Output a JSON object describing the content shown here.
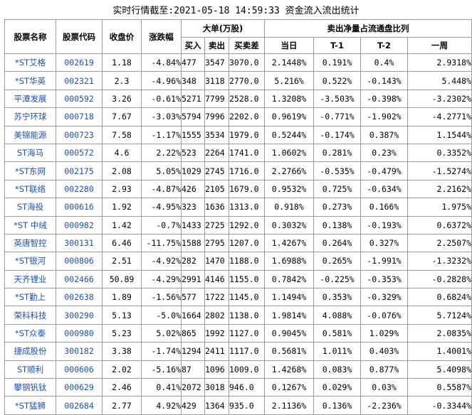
{
  "title": "实时行情截至:2021-05-18 14:59:33 资金流入流出统计",
  "headers": {
    "name": "股票名称",
    "code": "股票代码",
    "close": "收盘价",
    "change": "涨跌幅",
    "big_group": "大单(万股)",
    "buy": "买入",
    "sell": "卖出",
    "diff": "买卖差",
    "ratio_group": "卖出净量占流通盘比列",
    "day": "当日",
    "t1": "T-1",
    "t2": "T-2",
    "week": "一周"
  },
  "rows": [
    {
      "name": "*ST艾格",
      "code": "002619",
      "close": "1.18",
      "change": "-4.84%",
      "buy": "477",
      "sell": "3547",
      "diff": "3070.0",
      "day": "2.1448%",
      "t1": "0.191%",
      "t2": "0.4%",
      "week": "2.9318%"
    },
    {
      "name": "*ST华英",
      "code": "002321",
      "close": "2.3",
      "change": "-4.96%",
      "buy": "348",
      "sell": "3118",
      "diff": "2770.0",
      "day": "5.216%",
      "t1": "0.522%",
      "t2": "-0.143%",
      "week": "5.448%"
    },
    {
      "name": "平潭发展",
      "code": "000592",
      "close": "3.26",
      "change": "-0.61%",
      "buy": "5271",
      "sell": "7799",
      "diff": "2528.0",
      "day": "1.3208%",
      "t1": "-3.503%",
      "t2": "-0.398%",
      "week": "-3.2302%"
    },
    {
      "name": "苏宁环球",
      "code": "000718",
      "close": "7.67",
      "change": "-3.03%",
      "buy": "5794",
      "sell": "7996",
      "diff": "2202.0",
      "day": "0.9619%",
      "t1": "-0.771%",
      "t2": "-1.902%",
      "week": "-4.2771%"
    },
    {
      "name": "美锦能源",
      "code": "000723",
      "close": "7.58",
      "change": "-1.17%",
      "buy": "1555",
      "sell": "3534",
      "diff": "1979.0",
      "day": "0.5244%",
      "t1": "-0.174%",
      "t2": "0.387%",
      "week": "1.1544%"
    },
    {
      "name": "ST海马",
      "code": "000572",
      "close": "4.6",
      "change": "2.22%",
      "buy": "523",
      "sell": "2264",
      "diff": "1741.0",
      "day": "1.0602%",
      "t1": "0.281%",
      "t2": "0.23%",
      "week": "0.3352%"
    },
    {
      "name": "*ST东网",
      "code": "002175",
      "close": "2.08",
      "change": "5.05%",
      "buy": "1029",
      "sell": "2745",
      "diff": "1716.0",
      "day": "2.2766%",
      "t1": "-0.535%",
      "t2": "-0.479%",
      "week": "-1.5274%"
    },
    {
      "name": "*ST联络",
      "code": "002280",
      "close": "2.93",
      "change": "-4.87%",
      "buy": "426",
      "sell": "2105",
      "diff": "1679.0",
      "day": "0.9532%",
      "t1": "0.725%",
      "t2": "-0.634%",
      "week": "2.2162%"
    },
    {
      "name": "ST海投",
      "code": "000616",
      "close": "1.92",
      "change": "-4.95%",
      "buy": "323",
      "sell": "1636",
      "diff": "1313.0",
      "day": "0.918%",
      "t1": "0.273%",
      "t2": "0.166%",
      "week": "1.975%"
    },
    {
      "name": "*ST 中绒",
      "code": "000982",
      "close": "1.42",
      "change": "-0.7%",
      "buy": "1433",
      "sell": "2725",
      "diff": "1292.0",
      "day": "0.3032%",
      "t1": "0.138%",
      "t2": "-0.193%",
      "week": "0.6372%"
    },
    {
      "name": "英唐智控",
      "code": "300131",
      "close": "6.46",
      "change": "-11.75%",
      "buy": "1588",
      "sell": "2795",
      "diff": "1207.0",
      "day": "1.4267%",
      "t1": "0.264%",
      "t2": "0.327%",
      "week": "2.2507%"
    },
    {
      "name": "*ST银河",
      "code": "000806",
      "close": "2.51",
      "change": "-4.92%",
      "buy": "282",
      "sell": "1470",
      "diff": "1188.0",
      "day": "1.6988%",
      "t1": "0.265%",
      "t2": "-1.991%",
      "week": "-1.3232%"
    },
    {
      "name": "天齐锂业",
      "code": "002466",
      "close": "50.89",
      "change": "-4.29%",
      "buy": "2991",
      "sell": "4146",
      "diff": "1155.0",
      "day": "0.7842%",
      "t1": "-0.225%",
      "t2": "-0.353%",
      "week": "-0.2828%"
    },
    {
      "name": "*ST勤上",
      "code": "002638",
      "close": "1.89",
      "change": "-1.56%",
      "buy": "577",
      "sell": "1722",
      "diff": "1145.0",
      "day": "1.1494%",
      "t1": "0.353%",
      "t2": "-0.329%",
      "week": "0.6824%"
    },
    {
      "name": "荣科科技",
      "code": "300290",
      "close": "5.13",
      "change": "-5.0%",
      "buy": "1664",
      "sell": "2802",
      "diff": "1138.0",
      "day": "1.9814%",
      "t1": "4.088%",
      "t2": "-0.076%",
      "week": "5.7124%"
    },
    {
      "name": "*ST众泰",
      "code": "000980",
      "close": "5.23",
      "change": "5.02%",
      "buy": "865",
      "sell": "1992",
      "diff": "1127.0",
      "day": "0.9045%",
      "t1": "0.581%",
      "t2": "1.029%",
      "week": "2.0835%"
    },
    {
      "name": "捷成股份",
      "code": "300182",
      "close": "3.38",
      "change": "-1.74%",
      "buy": "1294",
      "sell": "2411",
      "diff": "1117.0",
      "day": "0.5681%",
      "t1": "1.011%",
      "t2": "0.403%",
      "week": "1.4001%"
    },
    {
      "name": "ST顺利",
      "code": "000606",
      "close": "2.02",
      "change": "-5.16%",
      "buy": "87",
      "sell": "1096",
      "diff": "1009.0",
      "day": "1.4268%",
      "t1": "0.083%",
      "t2": "0.877%",
      "week": "5.4098%"
    },
    {
      "name": "攀钢钒钛",
      "code": "000629",
      "close": "2.46",
      "change": "0.41%",
      "buy": "2072",
      "sell": "3018",
      "diff": "946.0",
      "day": "0.1267%",
      "t1": "0.029%",
      "t2": "0.03%",
      "week": "0.5587%"
    },
    {
      "name": "*ST猛狮",
      "code": "002684",
      "close": "2.77",
      "change": "4.92%",
      "buy": "429",
      "sell": "1364",
      "diff": "935.0",
      "day": "2.1136%",
      "t1": "0.136%",
      "t2": "-2.236%",
      "week": "-0.3344%"
    }
  ]
}
